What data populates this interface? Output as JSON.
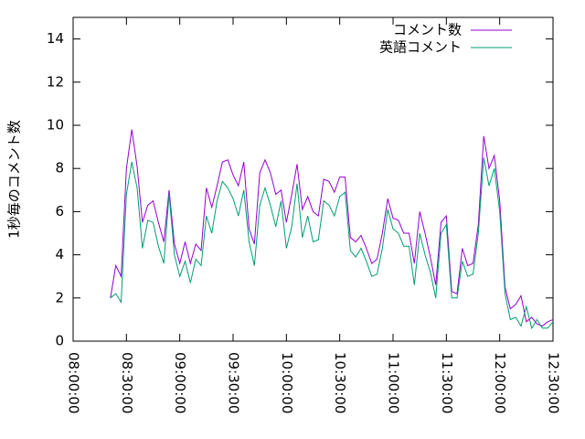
{
  "chart_data": {
    "type": "line",
    "ylabel": "1秒毎のコメント数",
    "x": [
      "08:21:00",
      "08:24:00",
      "08:27:00",
      "08:30:00",
      "08:33:00",
      "08:36:00",
      "08:39:00",
      "08:42:00",
      "08:45:00",
      "08:48:00",
      "08:51:00",
      "08:54:00",
      "08:57:00",
      "09:00:00",
      "09:03:00",
      "09:06:00",
      "09:09:00",
      "09:12:00",
      "09:15:00",
      "09:18:00",
      "09:21:00",
      "09:24:00",
      "09:27:00",
      "09:30:00",
      "09:33:00",
      "09:36:00",
      "09:39:00",
      "09:42:00",
      "09:45:00",
      "09:48:00",
      "09:51:00",
      "09:54:00",
      "09:57:00",
      "10:00:00",
      "10:03:00",
      "10:06:00",
      "10:09:00",
      "10:12:00",
      "10:15:00",
      "10:18:00",
      "10:21:00",
      "10:24:00",
      "10:27:00",
      "10:30:00",
      "10:33:00",
      "10:36:00",
      "10:39:00",
      "10:42:00",
      "10:45:00",
      "10:48:00",
      "10:51:00",
      "10:54:00",
      "10:57:00",
      "11:00:00",
      "11:03:00",
      "11:06:00",
      "11:09:00",
      "11:12:00",
      "11:15:00",
      "11:18:00",
      "11:21:00",
      "11:24:00",
      "11:27:00",
      "11:30:00",
      "11:33:00",
      "11:36:00",
      "11:39:00",
      "11:42:00",
      "11:45:00",
      "11:48:00",
      "11:51:00",
      "11:54:00",
      "11:57:00",
      "12:00:00",
      "12:03:00",
      "12:06:00",
      "12:09:00",
      "12:12:00",
      "12:15:00",
      "12:18:00",
      "12:21:00",
      "12:24:00",
      "12:27:00",
      "12:30:00"
    ],
    "series": [
      {
        "name": "コメント数",
        "color": "#9400d3",
        "values": [
          2.0,
          3.5,
          3.0,
          8.0,
          9.8,
          8.1,
          5.5,
          6.3,
          6.5,
          5.5,
          4.6,
          7.0,
          4.5,
          3.6,
          4.6,
          3.6,
          4.5,
          4.2,
          7.1,
          6.2,
          7.2,
          8.3,
          8.4,
          7.7,
          7.2,
          8.3,
          5.2,
          4.5,
          7.8,
          8.4,
          7.8,
          6.8,
          7.0,
          5.5,
          6.8,
          8.2,
          6.1,
          6.7,
          6.0,
          5.8,
          7.5,
          7.4,
          6.9,
          7.6,
          7.6,
          4.8,
          4.6,
          4.9,
          4.3,
          3.6,
          3.8,
          5.0,
          6.6,
          5.7,
          5.6,
          5.0,
          5.0,
          3.6,
          6.0,
          5.0,
          3.9,
          2.6,
          5.5,
          5.8,
          2.3,
          2.2,
          4.3,
          3.5,
          3.6,
          5.4,
          9.5,
          8.0,
          8.6,
          6.5,
          2.5,
          1.5,
          1.7,
          2.1,
          0.9,
          1.1,
          0.8,
          0.7,
          0.9,
          1.0
        ]
      },
      {
        "name": "英語コメント",
        "color": "#009e73",
        "values": [
          2.0,
          2.2,
          1.8,
          6.8,
          8.3,
          7.1,
          4.3,
          5.6,
          5.5,
          4.4,
          3.6,
          6.8,
          4.0,
          3.0,
          3.7,
          2.7,
          3.8,
          3.5,
          5.8,
          5.0,
          6.5,
          7.4,
          7.1,
          6.6,
          5.8,
          7.0,
          4.6,
          3.5,
          6.3,
          7.1,
          6.3,
          5.3,
          6.5,
          4.3,
          5.3,
          7.3,
          4.8,
          5.8,
          4.6,
          4.7,
          6.5,
          6.3,
          5.8,
          6.7,
          6.9,
          4.2,
          3.9,
          4.3,
          3.7,
          3.0,
          3.1,
          4.3,
          6.1,
          5.2,
          5.0,
          4.4,
          4.4,
          2.6,
          5.0,
          4.0,
          3.2,
          2.0,
          5.0,
          5.4,
          2.0,
          2.0,
          3.7,
          3.0,
          3.1,
          5.0,
          8.5,
          7.2,
          8.0,
          6.0,
          2.2,
          1.0,
          1.1,
          0.7,
          1.6,
          0.6,
          1.0,
          0.6,
          0.6,
          0.9
        ]
      }
    ],
    "xlim": [
      "08:00:00",
      "12:30:00"
    ],
    "xticks": [
      "08:00:00",
      "08:30:00",
      "09:00:00",
      "09:30:00",
      "10:00:00",
      "10:30:00",
      "11:00:00",
      "11:30:00",
      "12:00:00",
      "12:30:00"
    ],
    "ylim": [
      0,
      15
    ],
    "yticks": [
      0,
      2,
      4,
      6,
      8,
      10,
      12,
      14
    ],
    "legend": "top-right"
  }
}
